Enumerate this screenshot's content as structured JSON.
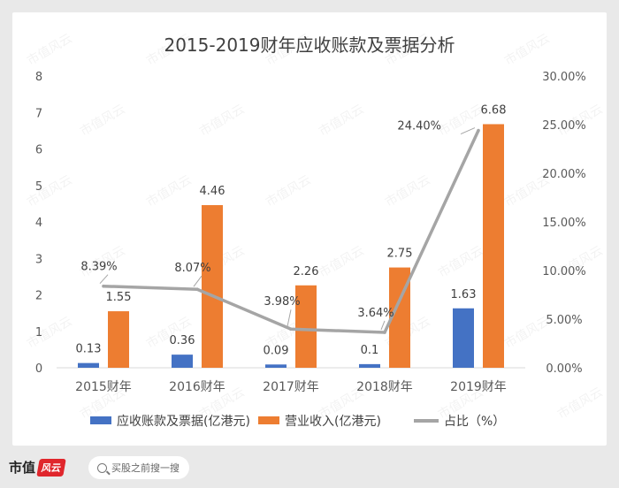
{
  "chart_data": {
    "type": "bar",
    "title": "2015-2019财年应收账款及票据分析",
    "categories": [
      "2015财年",
      "2016财年",
      "2017财年",
      "2018财年",
      "2019财年"
    ],
    "series": [
      {
        "name": "应收账款及票据(亿港元)",
        "type": "bar",
        "axis": "left",
        "color": "#4472c4",
        "values": [
          0.13,
          0.36,
          0.09,
          0.1,
          1.63
        ],
        "labels": [
          "0.13",
          "0.36",
          "0.09",
          "0.1",
          "1.63"
        ]
      },
      {
        "name": "营业收入(亿港元)",
        "type": "bar",
        "axis": "left",
        "color": "#ed7d31",
        "values": [
          1.55,
          4.46,
          2.26,
          2.75,
          6.68
        ],
        "labels": [
          "1.55",
          "4.46",
          "2.26",
          "2.75",
          "6.68"
        ]
      },
      {
        "name": "占比（%）",
        "type": "line",
        "axis": "right",
        "color": "#a5a5a5",
        "values": [
          8.39,
          8.07,
          3.98,
          3.64,
          24.4
        ],
        "labels": [
          "8.39%",
          "8.07%",
          "3.98%",
          "3.64%",
          "24.40%"
        ]
      }
    ],
    "y_left": {
      "lim": [
        0,
        8
      ],
      "ticks": [
        "0",
        "1",
        "2",
        "3",
        "4",
        "5",
        "6",
        "7",
        "8"
      ]
    },
    "y_right": {
      "lim": [
        0,
        30
      ],
      "ticks": [
        "0.00%",
        "5.00%",
        "10.00%",
        "15.00%",
        "20.00%",
        "25.00%",
        "30.00%"
      ]
    },
    "legend_position": "bottom",
    "watermark": "市值风云"
  },
  "footer": {
    "logo_text": "市值",
    "logo_mark": "风云",
    "search_placeholder": "买股之前搜一搜"
  }
}
